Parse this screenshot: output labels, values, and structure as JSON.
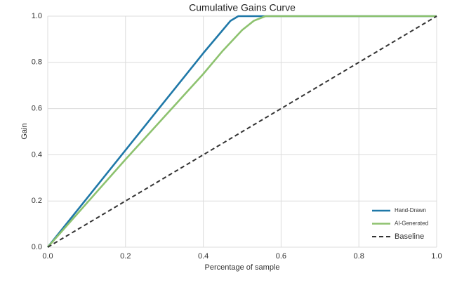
{
  "chart_data": {
    "type": "line",
    "title": "Cumulative Gains Curve",
    "x_label": "Percentage of sample",
    "y_label": "Gain",
    "xlim": [
      0,
      1
    ],
    "ylim": [
      0,
      1
    ],
    "xticks": [
      {
        "value": 0,
        "label": "0.0"
      },
      0.2,
      0.4,
      0.6,
      0.8,
      {
        "value": 1,
        "label": "1.0"
      }
    ],
    "yticks": [
      {
        "value": 0,
        "label": "0.0"
      },
      0.2,
      0.4,
      0.6,
      0.8,
      {
        "value": 1,
        "label": "1.0"
      }
    ],
    "grid": true,
    "legend": "lower right",
    "series": [
      {
        "name": "Hand-Drawn",
        "color": "#1f78a8",
        "linestyle": "solid",
        "x": [
          0,
          0.1,
          0.2,
          0.3,
          0.4,
          0.45,
          0.47,
          0.49,
          0.5,
          1
        ],
        "values": [
          0,
          0.21,
          0.42,
          0.63,
          0.84,
          0.94,
          0.98,
          1,
          1,
          1
        ]
      },
      {
        "name": "AI-Generated",
        "color": "#8dc26f",
        "linestyle": "solid",
        "x": [
          0,
          0.1,
          0.2,
          0.3,
          0.4,
          0.45,
          0.5,
          0.53,
          0.56,
          1
        ],
        "values": [
          0,
          0.19,
          0.38,
          0.565,
          0.75,
          0.85,
          0.94,
          0.98,
          1,
          1
        ]
      },
      {
        "name": "Baseline",
        "color": "#333333",
        "linestyle": "dashed",
        "x": [
          0,
          1
        ],
        "values": [
          0,
          1
        ]
      }
    ]
  }
}
